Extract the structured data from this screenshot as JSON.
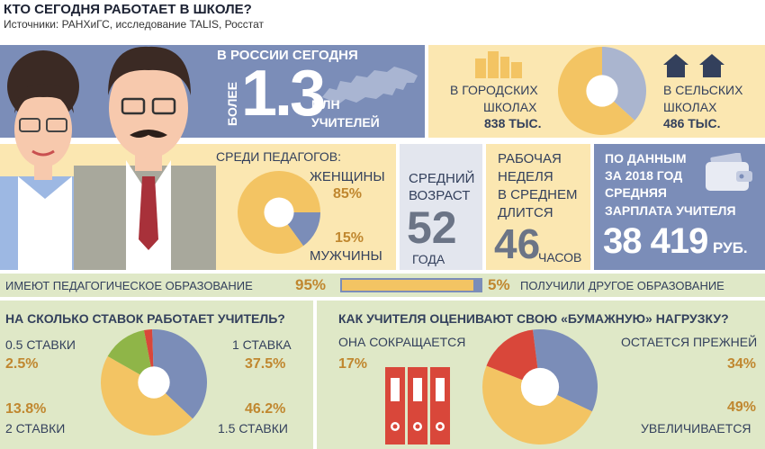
{
  "header": {
    "title": "КТО СЕГОДНЯ РАБОТАЕТ В ШКОЛЕ?",
    "sources": "Источники: РАНХиГС, исследование TALIS, Росстат"
  },
  "russia": {
    "label": "В РОССИИ СЕГОДНЯ",
    "more": "БОЛЕЕ",
    "number": "1.3",
    "unit_line1": "МЛН",
    "unit_line2": "УЧИТЕЛЕЙ"
  },
  "schools": {
    "city_line1": "В ГОРОДСКИХ",
    "city_line2": "ШКОЛАХ",
    "city_value": "838 ТЫС.",
    "rural_line1": "В СЕЛЬСКИХ",
    "rural_line2": "ШКОЛАХ",
    "rural_value": "486 ТЫС.",
    "city_share": 0.633,
    "rural_share": 0.367
  },
  "gender": {
    "label": "СРЕДИ ПЕДАГОГОВ:",
    "women_label": "ЖЕНЩИНЫ",
    "women_pct": "85%",
    "men_pct": "15%",
    "men_label": "МУЖЧИНЫ",
    "women_share": 0.85,
    "men_share": 0.15
  },
  "age": {
    "line1": "СРЕДНИЙ",
    "line2": "ВОЗРАСТ",
    "value": "52",
    "unit": "ГОДА"
  },
  "week": {
    "line1": "РАБОЧАЯ",
    "line2": "НЕДЕЛЯ",
    "line3": "В СРЕДНЕМ",
    "line4": "ДЛИТСЯ",
    "value": "46",
    "unit": "ЧАСОВ"
  },
  "salary": {
    "line1": "ПО ДАННЫМ",
    "line2": "ЗА 2018 ГОД",
    "line3": "СРЕДНЯЯ",
    "line4": "ЗАРПЛАТА УЧИТЕЛЯ",
    "value": "38 419",
    "unit": "РУБ."
  },
  "education": {
    "left_label": "ИМЕЮТ ПЕДАГОГИЧЕСКОЕ ОБРАЗОВАНИЕ",
    "left_pct": "95%",
    "right_pct": "5%",
    "right_label": "ПОЛУЧИЛИ ДРУГОЕ ОБРАЗОВАНИЕ",
    "ped_share": 0.95
  },
  "rates": {
    "title": "НА СКОЛЬКО СТАВОК РАБОТАЕТ УЧИТЕЛЬ?",
    "items": [
      {
        "label": "0.5 СТАВКИ",
        "pct": "2.5%",
        "share": 0.025,
        "color": "#d9473a"
      },
      {
        "label": "1 СТАВКА",
        "pct": "37.5%",
        "share": 0.375,
        "color": "#7b8db8"
      },
      {
        "label": "1.5 СТАВКИ",
        "pct": "46.2%",
        "share": 0.462,
        "color": "#f3c463"
      },
      {
        "label": "2 СТАВКИ",
        "pct": "13.8%",
        "share": 0.138,
        "color": "#8fb548"
      }
    ]
  },
  "paper": {
    "title": "КАК УЧИТЕЛЯ ОЦЕНИВАЮТ СВОЮ «БУМАЖНУЮ» НАГРУЗКУ?",
    "items": [
      {
        "label": "ОНА СОКРАЩАЕТСЯ",
        "pct": "17%",
        "share": 0.17,
        "color": "#d9473a"
      },
      {
        "label": "ОСТАЕТСЯ ПРЕЖНЕЙ",
        "pct": "34%",
        "share": 0.34,
        "color": "#7b8db8"
      },
      {
        "label": "УВЕЛИЧИВАЕТСЯ",
        "pct": "49%",
        "share": 0.49,
        "color": "#f3c463"
      }
    ]
  },
  "colors": {
    "navy": "#7b8db8",
    "dark_navy": "#33405c",
    "yellow": "#f3c463",
    "light_yellow": "#fbe7b1",
    "green_band": "#dfe8c7",
    "red": "#d9473a",
    "green": "#8fb548"
  }
}
